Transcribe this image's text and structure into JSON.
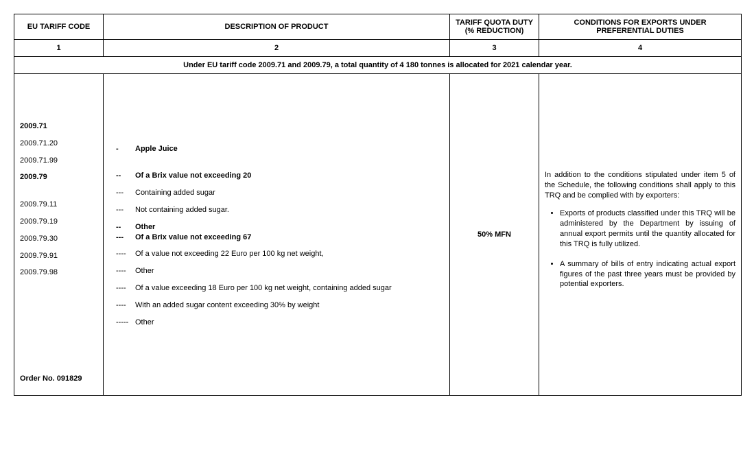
{
  "table": {
    "col_widths": [
      "130px",
      "505px",
      "130px",
      "295px"
    ],
    "headers": {
      "c1": "EU TARIFF CODE",
      "c2": "DESCRIPTION OF PRODUCT",
      "c3": "TARIFF QUOTA DUTY\n(% REDUCTION)",
      "c4": "CONDITIONS FOR EXPORTS UNDER PREFERENTIAL DUTIES"
    },
    "col_nums": {
      "c1": "1",
      "c2": "2",
      "c3": "3",
      "c4": "4"
    },
    "banner": "Under EU tariff code 2009.71 and 2009.79, a total quantity of 4 180 tonnes is allocated for 2021 calendar year.",
    "codes": [
      {
        "text": "",
        "bold": false,
        "spacer_before": true
      },
      {
        "text": "2009.71",
        "bold": true,
        "spacer_before": true
      },
      {
        "text": "2009.71.20",
        "bold": false
      },
      {
        "text": "2009.71.99",
        "bold": false
      },
      {
        "text": "2009.79",
        "bold": true
      },
      {
        "text": "",
        "bold": false
      },
      {
        "text": "2009.79.11",
        "bold": false
      },
      {
        "text": "2009.79.19",
        "bold": false
      },
      {
        "text": "2009.79.30",
        "bold": false
      },
      {
        "text": "2009.79.91",
        "bold": false
      },
      {
        "text": "2009.79.98",
        "bold": false
      }
    ],
    "order_no": "Order No. 091829",
    "descriptions": [
      {
        "dash": "-",
        "text": "Apple Juice",
        "bold": true,
        "spacer_before": true
      },
      {
        "dash": "--",
        "text": "Of a Brix value not exceeding 20",
        "bold": true,
        "spacer_before": true
      },
      {
        "dash": "---",
        "text": "Containing added sugar",
        "bold": false
      },
      {
        "dash": "---",
        "text": "Not containing added sugar.",
        "bold": false
      },
      {
        "dash": "--",
        "text": "Other",
        "bold": true
      },
      {
        "dash": "---",
        "text": "Of a Brix value not exceeding 67",
        "bold": true,
        "tight_above": true
      },
      {
        "dash": "----",
        "text": "Of a value not exceeding 22 Euro per 100 kg net weight,",
        "bold": false
      },
      {
        "dash": "----",
        "text": "Other",
        "bold": false
      },
      {
        "dash": "----",
        "text": "Of a value exceeding 18 Euro per 100 kg net weight, containing added  sugar",
        "bold": false
      },
      {
        "dash": "----",
        "text": "With an added sugar content exceeding 30% by weight",
        "bold": false
      },
      {
        "dash": "-----",
        "text": "Other",
        "bold": false
      }
    ],
    "duty": "50% MFN",
    "conditions": {
      "intro": "In addition to the conditions stipulated under item 5 of the Schedule, the following conditions shall apply to this TRQ and be complied with by exporters:",
      "bullets": [
        "Exports of products classified under this TRQ will be administered by the Department by issuing of annual export permits until the quantity allocated for this TRQ is fully utilized.",
        "A summary of bills of entry indicating actual export figures of the past three years must be provided by potential exporters."
      ]
    }
  }
}
